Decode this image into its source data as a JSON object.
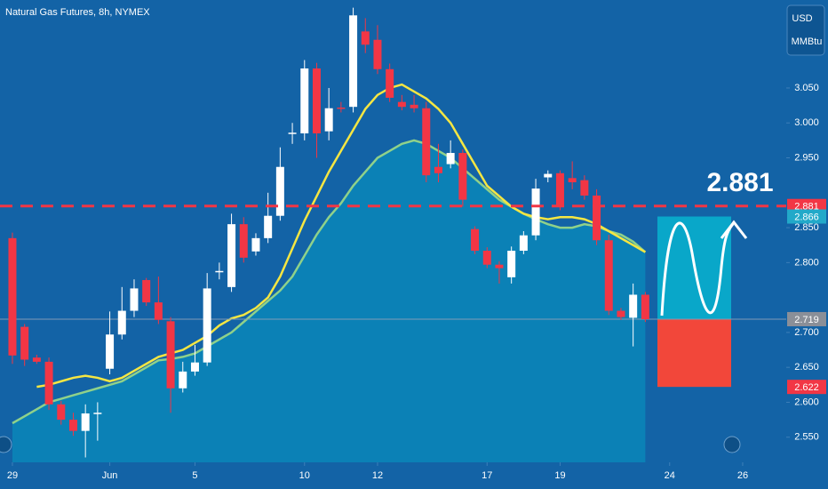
{
  "chart_data": {
    "type": "candlestick",
    "title": "Natural Gas Futures, 8h, NYMEX",
    "currency": "USD",
    "unit": "MMBtu",
    "ylim": [
      2.514,
      3.176
    ],
    "yticks": [
      {
        "value": 2.55,
        "label": "2.550"
      },
      {
        "value": 2.6,
        "label": "2.600"
      },
      {
        "value": 2.65,
        "label": "2.650"
      },
      {
        "value": 2.7,
        "label": "2.700"
      },
      {
        "value": 2.8,
        "label": "2.800"
      },
      {
        "value": 2.85,
        "label": "2.850"
      },
      {
        "value": 2.95,
        "label": "2.950"
      },
      {
        "value": 3.0,
        "label": "3.000"
      },
      {
        "value": 3.05,
        "label": "3.050"
      }
    ],
    "xlim": [
      -1.02,
      63.58
    ],
    "xticks": [
      {
        "value": 0,
        "label": "29"
      },
      {
        "value": 8,
        "label": "Jun"
      },
      {
        "value": 15,
        "label": "5"
      },
      {
        "value": 24,
        "label": "10"
      },
      {
        "value": 30,
        "label": "12"
      },
      {
        "value": 39,
        "label": "17"
      },
      {
        "value": 45,
        "label": "19"
      },
      {
        "value": 54,
        "label": "24"
      },
      {
        "value": 60,
        "label": "26"
      }
    ],
    "up_color": "#ffffff",
    "down_color": "#f23645",
    "candles": [
      [
        2.835,
        2.843,
        2.655,
        2.667
      ],
      [
        2.708,
        2.712,
        2.652,
        2.661
      ],
      [
        2.664,
        2.668,
        2.655,
        2.658
      ],
      [
        2.658,
        2.664,
        2.589,
        2.597
      ],
      [
        2.597,
        2.602,
        2.568,
        2.575
      ],
      [
        2.575,
        2.585,
        2.552,
        2.559
      ],
      [
        2.559,
        2.597,
        2.521,
        2.584
      ],
      [
        2.584,
        2.6,
        2.545,
        2.585
      ],
      [
        2.648,
        2.73,
        2.64,
        2.697
      ],
      [
        2.697,
        2.765,
        2.69,
        2.731
      ],
      [
        2.731,
        2.776,
        2.722,
        2.763
      ],
      [
        2.775,
        2.778,
        2.738,
        2.743
      ],
      [
        2.743,
        2.78,
        2.712,
        2.718
      ],
      [
        2.716,
        2.722,
        2.585,
        2.62
      ],
      [
        2.62,
        2.658,
        2.614,
        2.644
      ],
      [
        2.644,
        2.682,
        2.638,
        2.657
      ],
      [
        2.657,
        2.785,
        2.652,
        2.763
      ],
      [
        2.787,
        2.8,
        2.776,
        2.788
      ],
      [
        2.765,
        2.87,
        2.758,
        2.855
      ],
      [
        2.855,
        2.865,
        2.8,
        2.807
      ],
      [
        2.816,
        2.842,
        2.81,
        2.835
      ],
      [
        2.835,
        2.9,
        2.828,
        2.867
      ],
      [
        2.867,
        2.965,
        2.86,
        2.937
      ],
      [
        2.985,
        3.0,
        2.97,
        2.986
      ],
      [
        2.985,
        3.09,
        2.975,
        3.078
      ],
      [
        3.078,
        3.086,
        2.95,
        2.985
      ],
      [
        2.988,
        3.05,
        2.975,
        3.021
      ],
      [
        3.022,
        3.03,
        3.015,
        3.021
      ],
      [
        3.023,
        3.165,
        3.015,
        3.154
      ],
      [
        3.131,
        3.15,
        3.1,
        3.112
      ],
      [
        3.119,
        3.14,
        3.07,
        3.077
      ],
      [
        3.077,
        3.085,
        3.03,
        3.036
      ],
      [
        3.03,
        3.04,
        3.018,
        3.023
      ],
      [
        3.026,
        3.04,
        3.015,
        3.021
      ],
      [
        3.021,
        3.03,
        2.915,
        2.925
      ],
      [
        2.937,
        2.97,
        2.915,
        2.928
      ],
      [
        2.941,
        2.975,
        2.935,
        2.957
      ],
      [
        2.957,
        2.962,
        2.88,
        2.89
      ],
      [
        2.848,
        2.852,
        2.812,
        2.817
      ],
      [
        2.817,
        2.822,
        2.792,
        2.797
      ],
      [
        2.797,
        2.802,
        2.77,
        2.792
      ],
      [
        2.779,
        2.823,
        2.77,
        2.817
      ],
      [
        2.817,
        2.845,
        2.812,
        2.839
      ],
      [
        2.839,
        2.92,
        2.832,
        2.906
      ],
      [
        2.922,
        2.932,
        2.915,
        2.927
      ],
      [
        2.928,
        2.932,
        2.875,
        2.881
      ],
      [
        2.921,
        2.945,
        2.905,
        2.915
      ],
      [
        2.918,
        2.925,
        2.89,
        2.896
      ],
      [
        2.896,
        2.905,
        2.825,
        2.832
      ],
      [
        2.832,
        2.84,
        2.725,
        2.731
      ],
      [
        2.731,
        2.735,
        2.718,
        2.722
      ],
      [
        2.721,
        2.77,
        2.68,
        2.754
      ],
      [
        2.754,
        2.758,
        2.715,
        2.719
      ]
    ],
    "moving_averages": [
      {
        "color": "#8fd18a",
        "area": true,
        "values": [
          2.57,
          2.58,
          2.59,
          2.6,
          2.605,
          2.61,
          2.615,
          2.62,
          2.625,
          2.63,
          2.64,
          2.65,
          2.66,
          2.662,
          2.665,
          2.67,
          2.68,
          2.69,
          2.7,
          2.715,
          2.73,
          2.745,
          2.76,
          2.78,
          2.81,
          2.84,
          2.865,
          2.885,
          2.91,
          2.93,
          2.95,
          2.96,
          2.97,
          2.975,
          2.97,
          2.96,
          2.95,
          2.935,
          2.92,
          2.905,
          2.89,
          2.88,
          2.87,
          2.862,
          2.855,
          2.85,
          2.85,
          2.855,
          2.852,
          2.845,
          2.84,
          2.83,
          2.815
        ]
      },
      {
        "color": "#f5e642",
        "area": false,
        "values": [
          null,
          null,
          2.622,
          2.625,
          2.63,
          2.635,
          2.638,
          2.635,
          2.63,
          2.635,
          2.645,
          2.655,
          2.665,
          2.67,
          2.675,
          2.685,
          2.695,
          2.71,
          2.72,
          2.725,
          2.735,
          2.75,
          2.78,
          2.82,
          2.86,
          2.895,
          2.93,
          2.96,
          2.99,
          3.02,
          3.04,
          3.05,
          3.055,
          3.045,
          3.035,
          3.02,
          3.0,
          2.97,
          2.94,
          2.91,
          2.895,
          2.88,
          2.87,
          2.865,
          2.862,
          2.865,
          2.865,
          2.862,
          2.855,
          2.845,
          2.835,
          2.825,
          2.815
        ]
      }
    ],
    "price_labels": [
      {
        "value": 2.881,
        "color": "#f23645"
      },
      {
        "value": 2.866,
        "color": "#22a9c9"
      },
      {
        "value": 2.719,
        "color": "#f23645"
      },
      {
        "value": 2.719,
        "color": "#8a8f98"
      },
      {
        "value": 2.622,
        "color": "#f23645"
      }
    ],
    "annotation": 2.881
  }
}
